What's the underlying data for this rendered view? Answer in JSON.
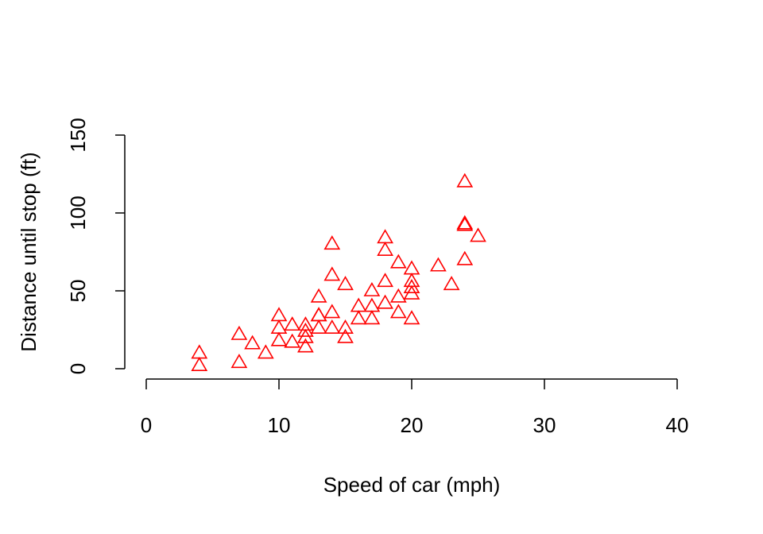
{
  "chart_data": {
    "type": "scatter",
    "xlabel": "Speed of car (mph)",
    "ylabel": "Distance until stop (ft)",
    "series": [
      {
        "color": "#ff0000",
        "x": [
          4,
          4,
          7,
          7,
          8,
          9,
          10,
          10,
          10,
          11,
          11,
          12,
          12,
          12,
          12,
          13,
          13,
          13,
          13,
          14,
          14,
          14,
          14,
          15,
          15,
          15,
          16,
          16,
          17,
          17,
          17,
          18,
          18,
          18,
          18,
          19,
          19,
          19,
          20,
          20,
          20,
          20,
          20,
          22,
          23,
          24,
          24,
          24,
          24,
          25
        ],
        "values": [
          2,
          10,
          4,
          22,
          16,
          10,
          18,
          26,
          34,
          17,
          28,
          14,
          20,
          24,
          28,
          26,
          34,
          34,
          46,
          26,
          36,
          60,
          80,
          20,
          26,
          54,
          32,
          40,
          32,
          40,
          50,
          42,
          56,
          76,
          84,
          36,
          46,
          68,
          32,
          48,
          52,
          56,
          64,
          66,
          54,
          70,
          92,
          93,
          120,
          85
        ]
      }
    ],
    "xlim": [
      0,
      40
    ],
    "xticks": [
      0,
      10,
      20,
      30,
      40
    ],
    "ylim": [
      0,
      150
    ],
    "yticks": [
      0,
      50,
      100,
      150
    ]
  }
}
